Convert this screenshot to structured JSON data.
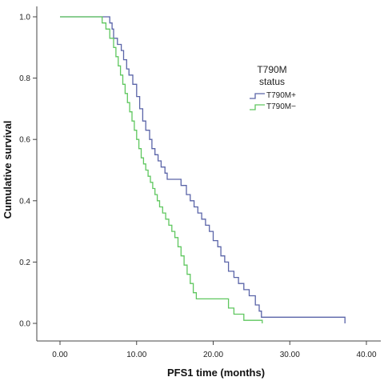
{
  "chart_data": {
    "type": "line",
    "step": true,
    "xlabel": "PFS1 time (months)",
    "ylabel": "Cumulative survival",
    "xlim": [
      0,
      40
    ],
    "ylim": [
      0,
      1
    ],
    "x_ticks": [
      "0.00",
      "10.00",
      "20.00",
      "30.00",
      "40.00"
    ],
    "y_ticks": [
      "0.0",
      "0.2",
      "0.4",
      "0.6",
      "0.8",
      "1.0"
    ],
    "grid": false,
    "legend": {
      "title_line1": "T790M",
      "title_line2": "status",
      "placement": "right-upper"
    },
    "series": [
      {
        "name": "T790M+",
        "color": "#5a64a8",
        "points": [
          [
            0,
            1.0
          ],
          [
            6.5,
            1.0
          ],
          [
            6.5,
            0.98
          ],
          [
            6.8,
            0.98
          ],
          [
            6.8,
            0.96
          ],
          [
            7.0,
            0.96
          ],
          [
            7.0,
            0.93
          ],
          [
            7.5,
            0.93
          ],
          [
            7.5,
            0.91
          ],
          [
            8.0,
            0.91
          ],
          [
            8.0,
            0.89
          ],
          [
            8.3,
            0.89
          ],
          [
            8.3,
            0.86
          ],
          [
            8.7,
            0.86
          ],
          [
            8.7,
            0.83
          ],
          [
            9.0,
            0.83
          ],
          [
            9.0,
            0.81
          ],
          [
            9.5,
            0.81
          ],
          [
            9.5,
            0.78
          ],
          [
            10.0,
            0.78
          ],
          [
            10.0,
            0.74
          ],
          [
            10.4,
            0.74
          ],
          [
            10.4,
            0.7
          ],
          [
            10.8,
            0.7
          ],
          [
            10.8,
            0.66
          ],
          [
            11.2,
            0.66
          ],
          [
            11.2,
            0.63
          ],
          [
            11.7,
            0.63
          ],
          [
            11.7,
            0.6
          ],
          [
            12.0,
            0.6
          ],
          [
            12.0,
            0.57
          ],
          [
            12.4,
            0.57
          ],
          [
            12.4,
            0.55
          ],
          [
            12.8,
            0.55
          ],
          [
            12.8,
            0.53
          ],
          [
            13.2,
            0.53
          ],
          [
            13.2,
            0.51
          ],
          [
            13.7,
            0.51
          ],
          [
            13.7,
            0.49
          ],
          [
            14.0,
            0.49
          ],
          [
            14.0,
            0.47
          ],
          [
            15.8,
            0.47
          ],
          [
            15.8,
            0.45
          ],
          [
            16.5,
            0.45
          ],
          [
            16.5,
            0.42
          ],
          [
            17.0,
            0.42
          ],
          [
            17.0,
            0.4
          ],
          [
            17.5,
            0.4
          ],
          [
            17.5,
            0.38
          ],
          [
            18.0,
            0.38
          ],
          [
            18.0,
            0.36
          ],
          [
            18.5,
            0.36
          ],
          [
            18.5,
            0.34
          ],
          [
            19.0,
            0.34
          ],
          [
            19.0,
            0.32
          ],
          [
            19.5,
            0.32
          ],
          [
            19.5,
            0.3
          ],
          [
            20.0,
            0.3
          ],
          [
            20.0,
            0.27
          ],
          [
            20.6,
            0.27
          ],
          [
            20.6,
            0.25
          ],
          [
            21.0,
            0.25
          ],
          [
            21.0,
            0.22
          ],
          [
            21.5,
            0.22
          ],
          [
            21.5,
            0.2
          ],
          [
            22.0,
            0.2
          ],
          [
            22.0,
            0.17
          ],
          [
            22.7,
            0.17
          ],
          [
            22.7,
            0.15
          ],
          [
            23.3,
            0.15
          ],
          [
            23.3,
            0.13
          ],
          [
            24.0,
            0.13
          ],
          [
            24.0,
            0.11
          ],
          [
            24.7,
            0.11
          ],
          [
            24.7,
            0.09
          ],
          [
            25.5,
            0.09
          ],
          [
            25.5,
            0.06
          ],
          [
            26.0,
            0.06
          ],
          [
            26.0,
            0.04
          ],
          [
            26.3,
            0.04
          ],
          [
            26.3,
            0.02
          ],
          [
            37.2,
            0.02
          ],
          [
            37.2,
            0.0
          ]
        ]
      },
      {
        "name": "T790M−",
        "color": "#5fc75f",
        "points": [
          [
            0,
            1.0
          ],
          [
            5.5,
            1.0
          ],
          [
            5.5,
            0.98
          ],
          [
            6.0,
            0.98
          ],
          [
            6.0,
            0.96
          ],
          [
            6.5,
            0.96
          ],
          [
            6.5,
            0.93
          ],
          [
            7.0,
            0.93
          ],
          [
            7.0,
            0.9
          ],
          [
            7.3,
            0.9
          ],
          [
            7.3,
            0.87
          ],
          [
            7.6,
            0.87
          ],
          [
            7.6,
            0.84
          ],
          [
            7.9,
            0.84
          ],
          [
            7.9,
            0.81
          ],
          [
            8.2,
            0.81
          ],
          [
            8.2,
            0.78
          ],
          [
            8.5,
            0.78
          ],
          [
            8.5,
            0.75
          ],
          [
            8.8,
            0.75
          ],
          [
            8.8,
            0.72
          ],
          [
            9.1,
            0.72
          ],
          [
            9.1,
            0.69
          ],
          [
            9.4,
            0.69
          ],
          [
            9.4,
            0.66
          ],
          [
            9.7,
            0.66
          ],
          [
            9.7,
            0.63
          ],
          [
            10.0,
            0.63
          ],
          [
            10.0,
            0.6
          ],
          [
            10.3,
            0.6
          ],
          [
            10.3,
            0.57
          ],
          [
            10.6,
            0.57
          ],
          [
            10.6,
            0.54
          ],
          [
            10.9,
            0.54
          ],
          [
            10.9,
            0.52
          ],
          [
            11.2,
            0.52
          ],
          [
            11.2,
            0.5
          ],
          [
            11.5,
            0.5
          ],
          [
            11.5,
            0.48
          ],
          [
            11.8,
            0.48
          ],
          [
            11.8,
            0.46
          ],
          [
            12.1,
            0.46
          ],
          [
            12.1,
            0.44
          ],
          [
            12.4,
            0.44
          ],
          [
            12.4,
            0.42
          ],
          [
            12.7,
            0.42
          ],
          [
            12.7,
            0.4
          ],
          [
            13.0,
            0.4
          ],
          [
            13.0,
            0.38
          ],
          [
            13.4,
            0.38
          ],
          [
            13.4,
            0.36
          ],
          [
            13.8,
            0.36
          ],
          [
            13.8,
            0.34
          ],
          [
            14.2,
            0.34
          ],
          [
            14.2,
            0.32
          ],
          [
            14.6,
            0.32
          ],
          [
            14.6,
            0.3
          ],
          [
            15.0,
            0.3
          ],
          [
            15.0,
            0.28
          ],
          [
            15.4,
            0.28
          ],
          [
            15.4,
            0.25
          ],
          [
            15.8,
            0.25
          ],
          [
            15.8,
            0.22
          ],
          [
            16.2,
            0.22
          ],
          [
            16.2,
            0.19
          ],
          [
            16.6,
            0.19
          ],
          [
            16.6,
            0.16
          ],
          [
            17.0,
            0.16
          ],
          [
            17.0,
            0.13
          ],
          [
            17.4,
            0.13
          ],
          [
            17.4,
            0.1
          ],
          [
            17.8,
            0.1
          ],
          [
            17.8,
            0.08
          ],
          [
            22.0,
            0.08
          ],
          [
            22.0,
            0.05
          ],
          [
            22.7,
            0.05
          ],
          [
            22.7,
            0.03
          ],
          [
            24.0,
            0.03
          ],
          [
            24.0,
            0.01
          ],
          [
            26.4,
            0.01
          ],
          [
            26.4,
            0.0
          ]
        ]
      }
    ]
  }
}
